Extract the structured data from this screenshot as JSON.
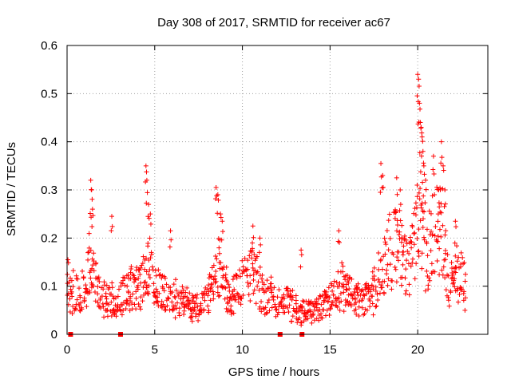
{
  "chart_data": {
    "type": "scatter",
    "title": "Day 308 of 2017, SRMTID for receiver ac67",
    "xlabel": "GPS time / hours",
    "ylabel": "SRMTID / TECUs",
    "xlim": [
      0,
      24
    ],
    "ylim": [
      0,
      0.6
    ],
    "x_ticks": [
      0,
      5,
      10,
      15,
      20
    ],
    "x_tick_labels": [
      "0",
      "5",
      "10",
      "15",
      "20"
    ],
    "y_ticks": [
      0,
      0.1,
      0.2,
      0.3,
      0.4,
      0.5,
      0.6
    ],
    "y_tick_labels": [
      "0",
      "0.1",
      "0.2",
      "0.3",
      "0.4",
      "0.5",
      "0.6"
    ],
    "grid": true,
    "marker": "plus",
    "color": "#ff0000",
    "series": [
      {
        "name": "SRMTID",
        "x_start": 0.0,
        "x_end": 22.75,
        "x_step": 0.0417,
        "baseline": [
          [
            0.0,
            0.09
          ],
          [
            1.0,
            0.085
          ],
          [
            1.3,
            0.15
          ],
          [
            1.5,
            0.12
          ],
          [
            2.0,
            0.07
          ],
          [
            2.8,
            0.075
          ],
          [
            3.5,
            0.09
          ],
          [
            4.2,
            0.1
          ],
          [
            4.6,
            0.13
          ],
          [
            5.5,
            0.08
          ],
          [
            6.5,
            0.07
          ],
          [
            7.5,
            0.055
          ],
          [
            8.3,
            0.09
          ],
          [
            8.6,
            0.14
          ],
          [
            9.2,
            0.08
          ],
          [
            10.0,
            0.11
          ],
          [
            10.5,
            0.13
          ],
          [
            11.2,
            0.08
          ],
          [
            12.5,
            0.07
          ],
          [
            13.3,
            0.045
          ],
          [
            14.3,
            0.05
          ],
          [
            15.0,
            0.08
          ],
          [
            15.8,
            0.1
          ],
          [
            16.5,
            0.07
          ],
          [
            17.3,
            0.07
          ],
          [
            17.8,
            0.12
          ],
          [
            18.3,
            0.17
          ],
          [
            18.9,
            0.19
          ],
          [
            19.5,
            0.12
          ],
          [
            20.0,
            0.25
          ],
          [
            20.5,
            0.15
          ],
          [
            21.0,
            0.22
          ],
          [
            21.4,
            0.2
          ],
          [
            21.8,
            0.1
          ],
          [
            22.2,
            0.14
          ],
          [
            22.75,
            0.1
          ]
        ],
        "spikes": [
          {
            "x": 0.05,
            "y": 0.155
          },
          {
            "x": 1.35,
            "y": 0.32
          },
          {
            "x": 1.4,
            "y": 0.3
          },
          {
            "x": 1.45,
            "y": 0.26
          },
          {
            "x": 2.55,
            "y": 0.245
          },
          {
            "x": 4.5,
            "y": 0.35
          },
          {
            "x": 4.55,
            "y": 0.32
          },
          {
            "x": 4.65,
            "y": 0.27
          },
          {
            "x": 4.75,
            "y": 0.25
          },
          {
            "x": 5.9,
            "y": 0.215
          },
          {
            "x": 8.5,
            "y": 0.305
          },
          {
            "x": 8.6,
            "y": 0.29
          },
          {
            "x": 8.75,
            "y": 0.25
          },
          {
            "x": 8.85,
            "y": 0.235
          },
          {
            "x": 10.6,
            "y": 0.225
          },
          {
            "x": 11.0,
            "y": 0.2
          },
          {
            "x": 13.35,
            "y": 0.175
          },
          {
            "x": 15.5,
            "y": 0.215
          },
          {
            "x": 17.9,
            "y": 0.355
          },
          {
            "x": 18.0,
            "y": 0.33
          },
          {
            "x": 18.8,
            "y": 0.325
          },
          {
            "x": 19.0,
            "y": 0.3
          },
          {
            "x": 20.0,
            "y": 0.54
          },
          {
            "x": 20.05,
            "y": 0.53
          },
          {
            "x": 20.1,
            "y": 0.48
          },
          {
            "x": 20.15,
            "y": 0.44
          },
          {
            "x": 20.2,
            "y": 0.43
          },
          {
            "x": 20.25,
            "y": 0.41
          },
          {
            "x": 20.3,
            "y": 0.38
          },
          {
            "x": 20.35,
            "y": 0.35
          },
          {
            "x": 20.45,
            "y": 0.32
          },
          {
            "x": 20.9,
            "y": 0.37
          },
          {
            "x": 21.2,
            "y": 0.3
          },
          {
            "x": 21.35,
            "y": 0.4
          },
          {
            "x": 21.45,
            "y": 0.35
          },
          {
            "x": 21.55,
            "y": 0.3
          },
          {
            "x": 22.15,
            "y": 0.235
          }
        ],
        "gap_markers_x": [
          0.2,
          3.05,
          12.15,
          13.4
        ],
        "gap_markers_y": 0.0
      }
    ]
  }
}
